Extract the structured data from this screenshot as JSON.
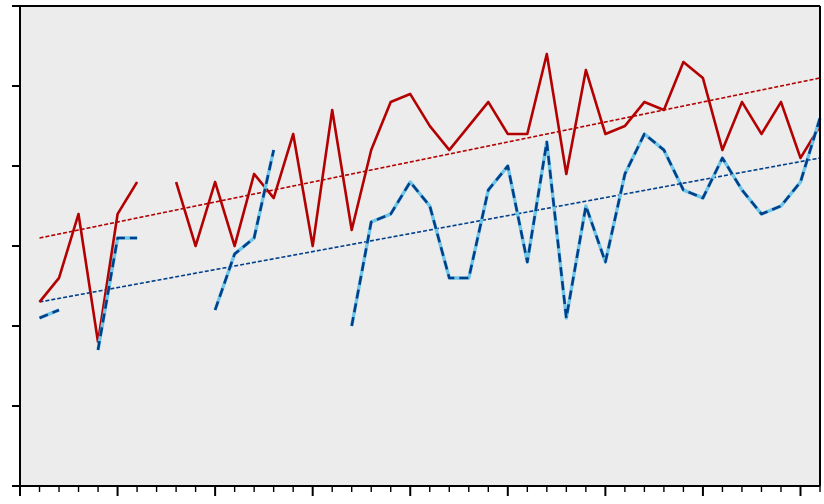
{
  "chart_data": {
    "type": "line",
    "title": "",
    "xlabel": "",
    "ylabel": "",
    "x": [
      1,
      2,
      3,
      4,
      5,
      6,
      7,
      8,
      9,
      10,
      11,
      12,
      13,
      14,
      15,
      16,
      17,
      18,
      19,
      20,
      21,
      22,
      23,
      24,
      25,
      26,
      27,
      28,
      29,
      30,
      31,
      32,
      33,
      34,
      35,
      36,
      37,
      38,
      39,
      40,
      41
    ],
    "xlim": [
      0,
      41
    ],
    "ylim": [
      0,
      6
    ],
    "grid": false,
    "series": [
      {
        "color": "#b30000",
        "style": "solid",
        "values": [
          2.3,
          2.6,
          3.4,
          1.8,
          3.4,
          3.8,
          null,
          3.8,
          3.0,
          3.8,
          3.0,
          3.9,
          3.6,
          4.4,
          3.0,
          4.7,
          3.2,
          4.2,
          4.8,
          4.9,
          4.5,
          4.2,
          4.5,
          4.8,
          4.4,
          4.4,
          5.4,
          3.9,
          5.2,
          4.4,
          4.5,
          4.8,
          4.7,
          5.3,
          5.1,
          4.2,
          4.8,
          4.4,
          4.8,
          4.1,
          4.5
        ]
      },
      {
        "color": "#003f8a",
        "highlight": "#6ec6e8",
        "style": "dashed",
        "values": [
          2.1,
          2.2,
          null,
          1.7,
          3.1,
          3.1,
          null,
          null,
          null,
          2.2,
          2.9,
          3.1,
          4.2,
          null,
          2.0,
          null,
          2.0,
          3.3,
          3.4,
          3.8,
          3.5,
          2.6,
          2.6,
          3.7,
          4.0,
          2.8,
          4.3,
          2.1,
          3.5,
          2.8,
          3.9,
          4.4,
          4.2,
          3.7,
          3.6,
          4.1,
          3.7,
          3.4,
          3.5,
          3.8,
          4.6
        ]
      }
    ],
    "trendlines": [
      {
        "color": "#b30000",
        "style": "dotted",
        "start": [
          1,
          3.1
        ],
        "end": [
          41,
          5.1
        ]
      },
      {
        "color": "#003f8a",
        "style": "dotted",
        "start": [
          1,
          2.3
        ],
        "end": [
          41,
          4.1
        ]
      }
    ],
    "plot_background": "#ececec",
    "axis_color": "#000000"
  }
}
